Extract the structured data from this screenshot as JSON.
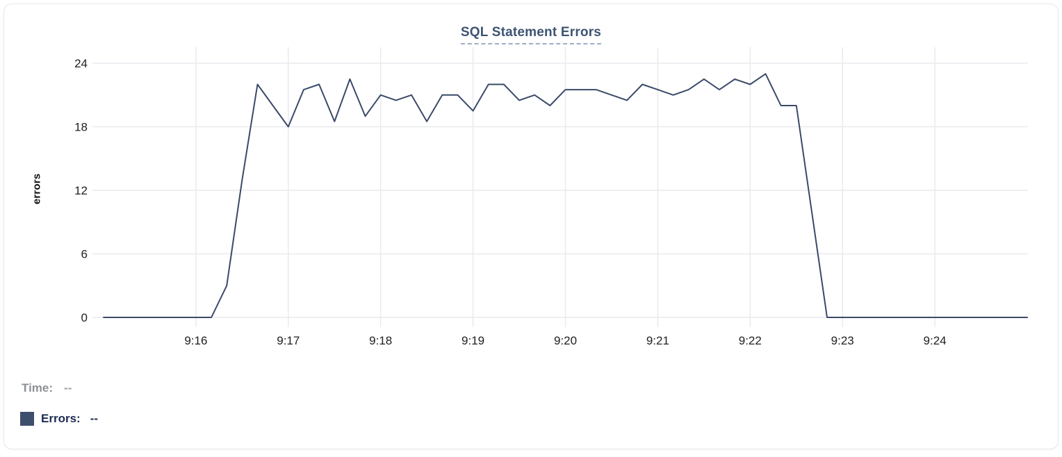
{
  "chart": {
    "title": "SQL Statement Errors",
    "y_axis_label": "errors"
  },
  "legend": {
    "time_label": "Time:",
    "time_value": "--",
    "errors_label": "Errors:",
    "errors_value": "--",
    "swatch_color": "#3e4e6d"
  },
  "colors": {
    "line": "#3a4a68",
    "grid": "#e9eaee",
    "tick_text": "#202124",
    "title_text": "#3d5472",
    "title_underline": "#9fadc4",
    "time_text": "#8d9095",
    "errors_text": "#1b2b52",
    "card_border": "#e7e8ec"
  },
  "chart_data": {
    "type": "line",
    "title": "SQL Statement Errors",
    "xlabel": "",
    "ylabel": "errors",
    "ylim": [
      0,
      24
    ],
    "yticks": [
      0,
      6,
      12,
      18,
      24
    ],
    "x_start": "9:15:00",
    "x_end": "9:25:00",
    "interval_seconds": 10,
    "x_tick_labels": [
      "9:16",
      "9:17",
      "9:18",
      "9:19",
      "9:20",
      "9:21",
      "9:22",
      "9:23",
      "9:24"
    ],
    "x_tick_minutes": [
      1,
      2,
      3,
      4,
      5,
      6,
      7,
      8,
      9
    ],
    "grid": true,
    "legend_position": "bottom-left",
    "series": [
      {
        "name": "Errors",
        "color": "#3a4a68",
        "values": [
          0,
          0,
          0,
          0,
          0,
          0,
          0,
          0,
          3,
          13,
          22,
          20,
          18,
          21.5,
          22,
          18.5,
          22.5,
          19,
          21,
          20.5,
          21,
          18.5,
          21,
          21,
          19.5,
          22,
          22,
          20.5,
          21,
          20,
          21.5,
          21.5,
          21.5,
          21,
          20.5,
          22,
          21.5,
          21,
          21.5,
          22.5,
          21.5,
          22.5,
          22,
          23,
          20,
          20,
          10,
          0,
          0,
          0,
          0,
          0,
          0,
          0,
          0,
          0,
          0,
          0,
          0,
          0,
          0
        ]
      }
    ]
  }
}
